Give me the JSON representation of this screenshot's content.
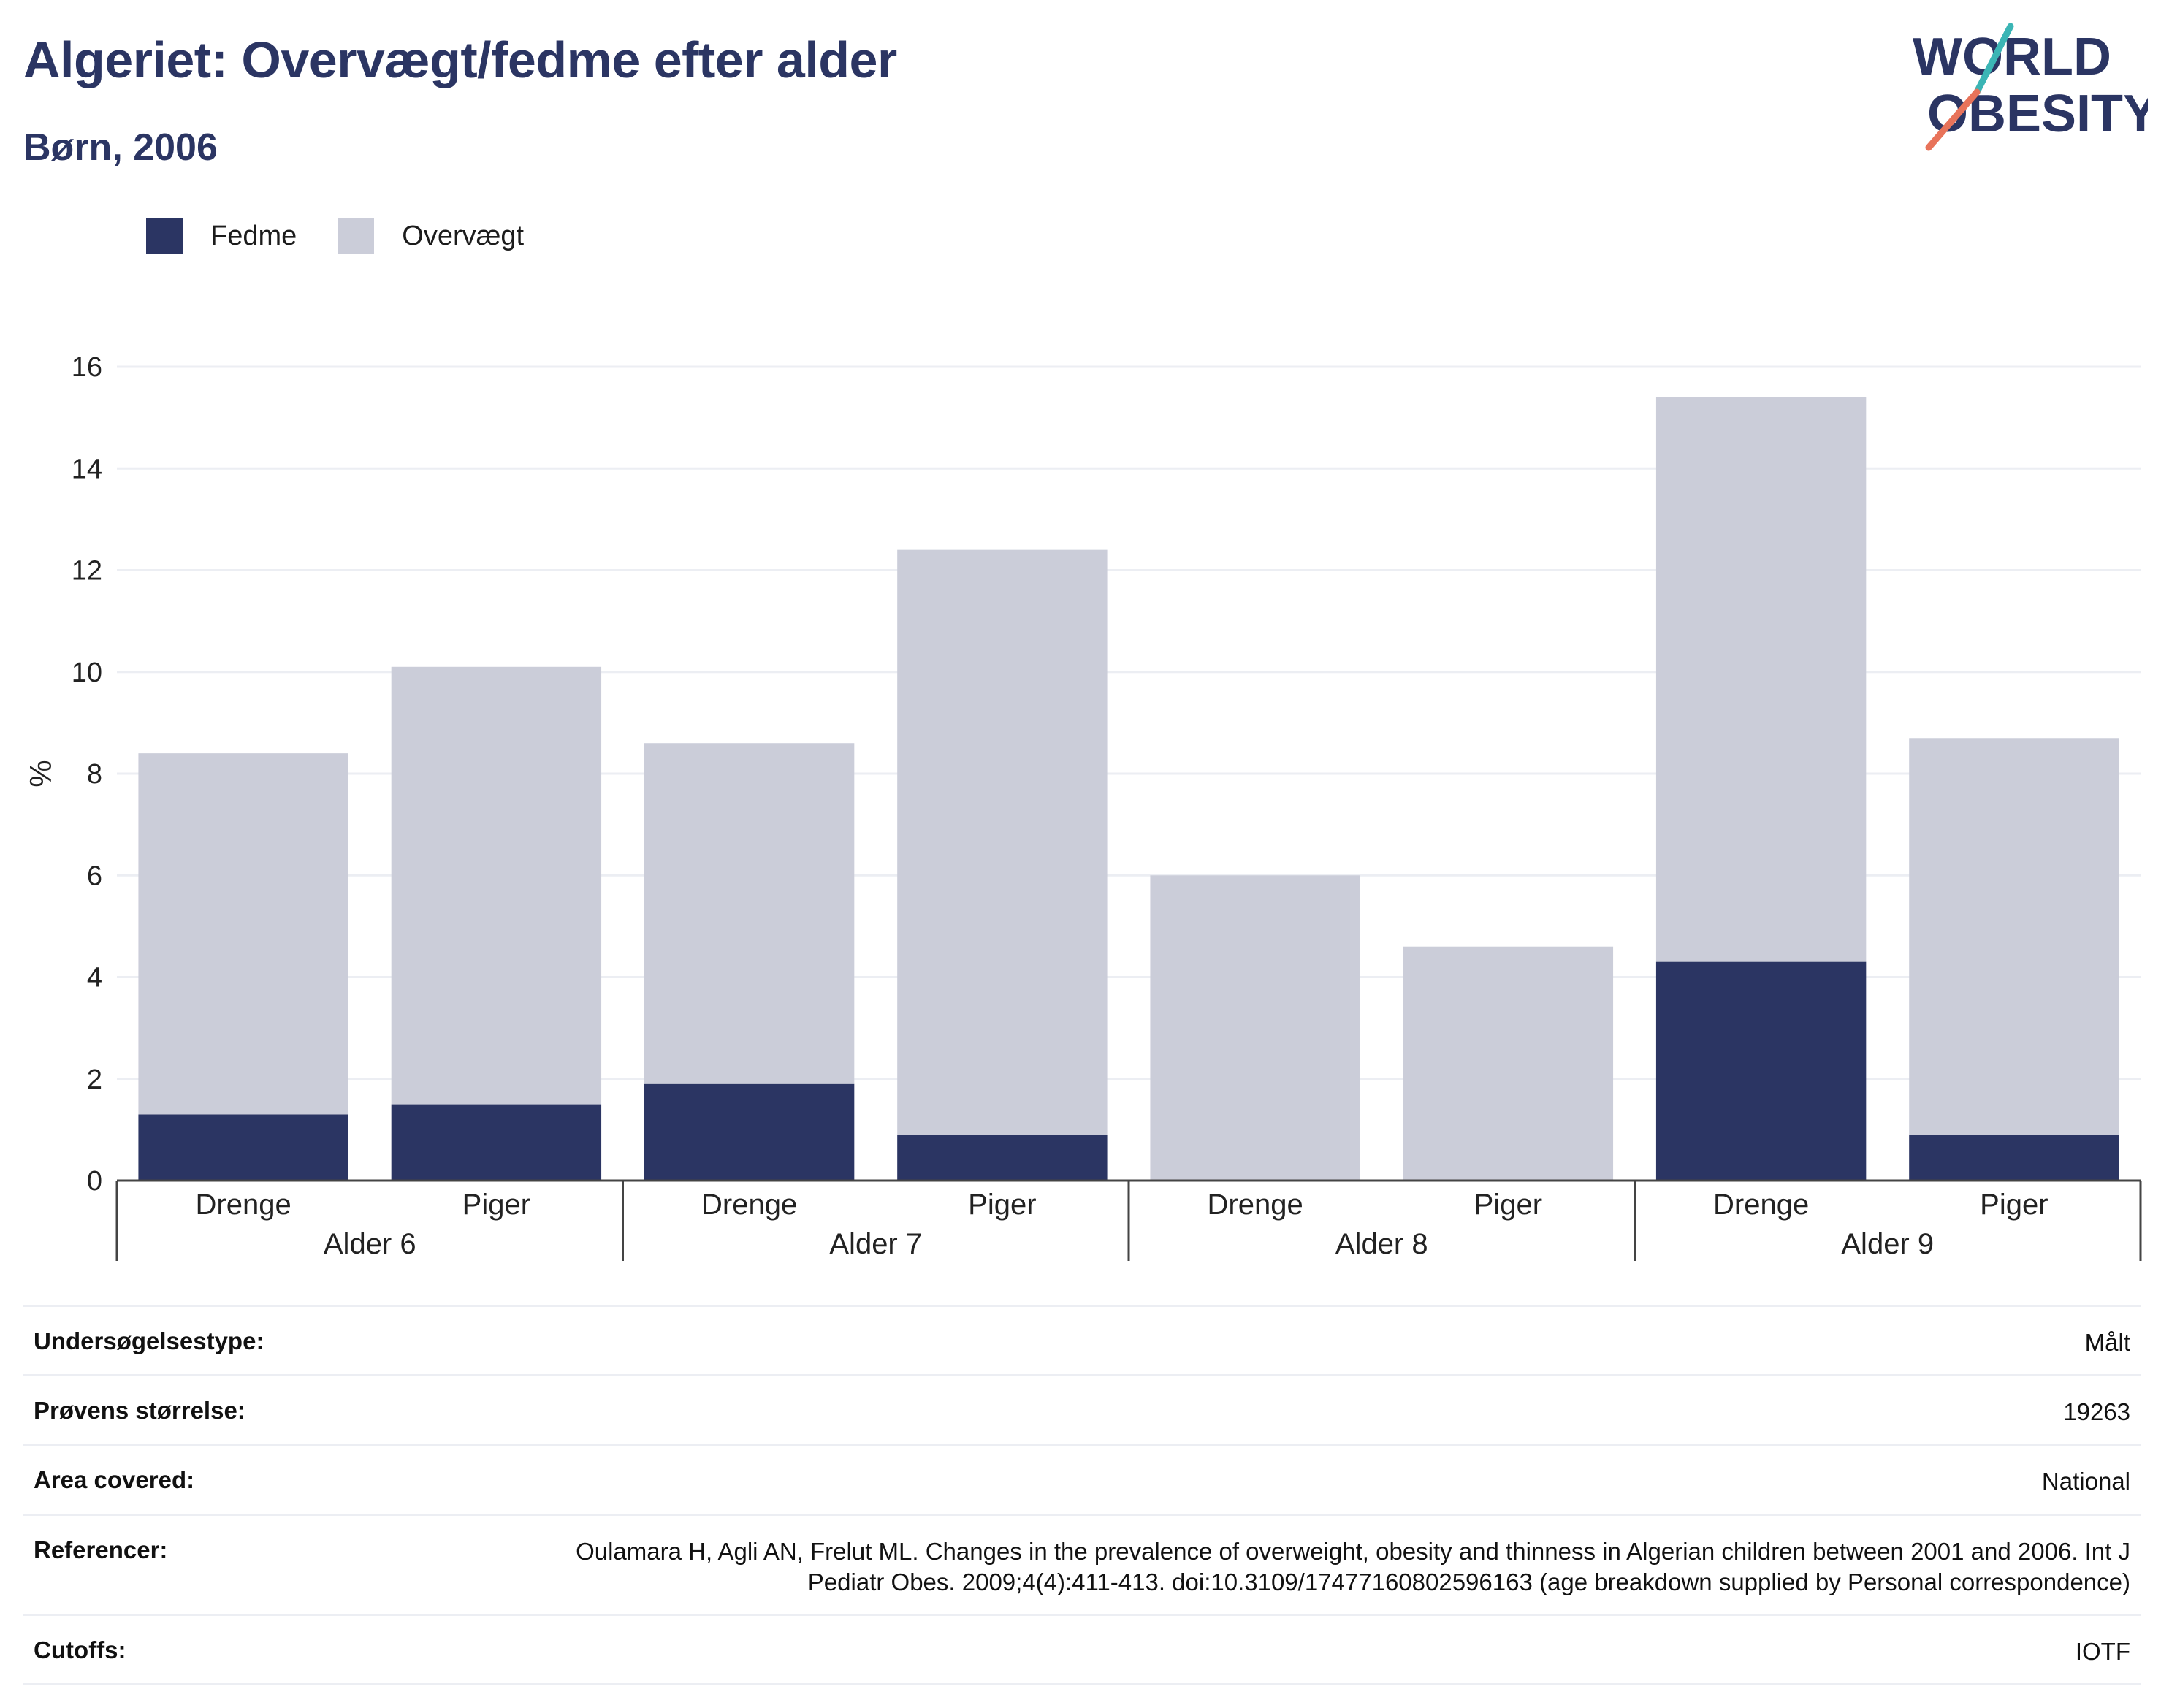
{
  "header": {
    "title": "Algeriet: Overvægt/fedme efter alder",
    "subtitle": "Børn, 2006"
  },
  "logo": {
    "line1": "WORLD",
    "line2": "OBESITY",
    "colors": {
      "text": "#2b3563",
      "accent_teal": "#3bb5b5",
      "accent_coral": "#e8735a"
    }
  },
  "chart_data": {
    "type": "bar",
    "stacked": true,
    "title": "",
    "xlabel": "",
    "ylabel": "%",
    "ylim": [
      0,
      16
    ],
    "yticks": [
      0,
      2,
      4,
      6,
      8,
      10,
      12,
      14,
      16
    ],
    "grid": true,
    "legend_position": "top-left",
    "groups": [
      "Alder 6",
      "Alder 7",
      "Alder 8",
      "Alder 9"
    ],
    "categories": [
      "Drenge",
      "Piger",
      "Drenge",
      "Piger",
      "Drenge",
      "Piger",
      "Drenge",
      "Piger"
    ],
    "series": [
      {
        "name": "Fedme",
        "color": "#2b3563",
        "values": [
          1.3,
          1.5,
          1.9,
          0.9,
          0,
          0,
          4.3,
          0.9
        ]
      },
      {
        "name": "Overvægt",
        "color": "#cbcdd9",
        "values": [
          7.1,
          8.6,
          6.7,
          11.5,
          6.0,
          4.6,
          11.1,
          7.8
        ]
      }
    ]
  },
  "details": {
    "rows": [
      {
        "label": "Undersøgelsestype:",
        "value": "Målt"
      },
      {
        "label": "Prøvens størrelse:",
        "value": "19263"
      },
      {
        "label": "Area covered:",
        "value": "National"
      },
      {
        "label": "Referencer:",
        "value": "Oulamara H, Agli AN, Frelut ML. Changes in the prevalence of overweight, obesity and thinness in Algerian children between 2001 and 2006. Int J Pediatr Obes. 2009;4(4):411-413. doi:10.3109/17477160802596163 (age breakdown supplied by Personal correspondence)"
      },
      {
        "label": "Cutoffs:",
        "value": "IOTF"
      }
    ]
  }
}
